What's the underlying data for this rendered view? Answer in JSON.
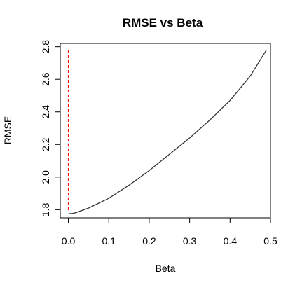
{
  "chart_data": {
    "type": "line",
    "title": "RMSE vs Beta",
    "xlabel": "Beta",
    "ylabel": "RMSE",
    "xlim": [
      -0.02,
      0.5
    ],
    "ylim": [
      1.75,
      2.82
    ],
    "xticks": [
      "0.0",
      "0.1",
      "0.2",
      "0.3",
      "0.4",
      "0.5"
    ],
    "yticks": [
      "1.8",
      "2.0",
      "2.2",
      "2.4",
      "2.6",
      "2.8"
    ],
    "grid": false,
    "series": [
      {
        "color": "#333333",
        "x": [
          0.0,
          0.01,
          0.02,
          0.05,
          0.1,
          0.15,
          0.2,
          0.25,
          0.3,
          0.35,
          0.4,
          0.45,
          0.49
        ],
        "y": [
          1.775,
          1.777,
          1.783,
          1.81,
          1.87,
          1.95,
          2.04,
          2.14,
          2.24,
          2.35,
          2.47,
          2.62,
          2.78
        ]
      }
    ],
    "reference_lines": [
      {
        "orientation": "vertical",
        "x": 0.0,
        "color": "#ff0000",
        "style": "dashed"
      }
    ]
  }
}
